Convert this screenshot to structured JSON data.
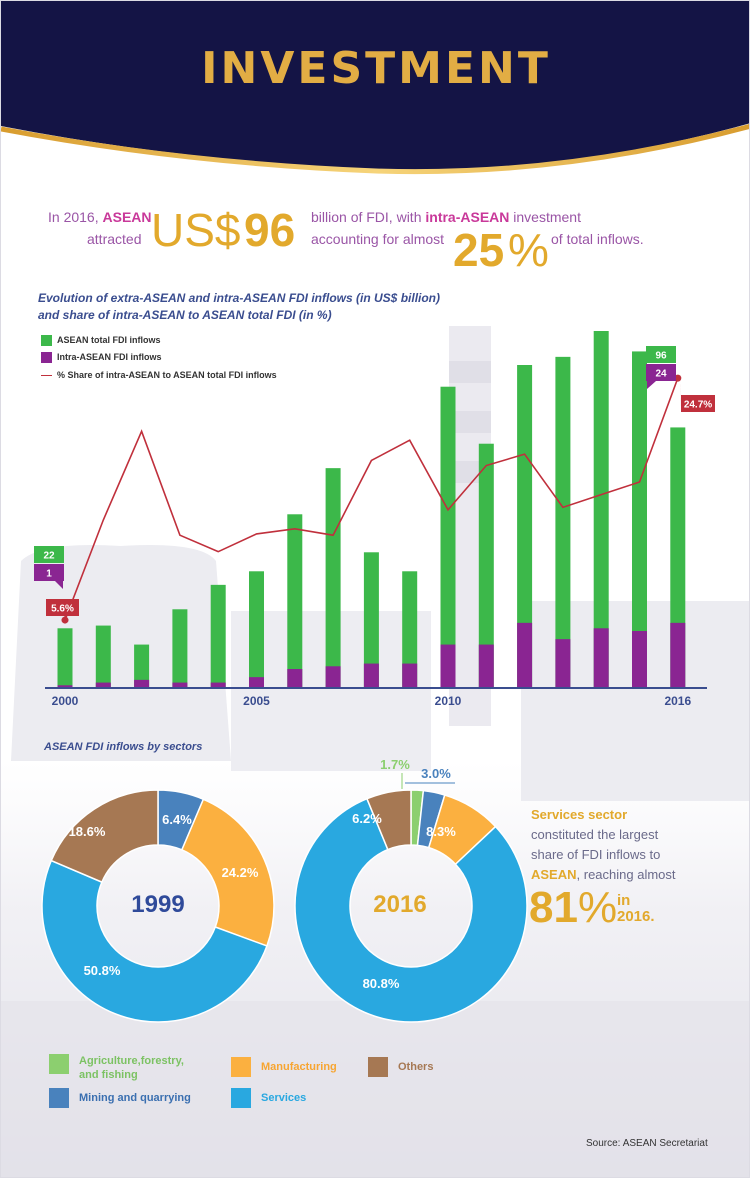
{
  "header": {
    "title": "INVESTMENT"
  },
  "intro": {
    "part1": "In 2016,",
    "asean": "ASEAN",
    "attracted": "attracted",
    "usd": "US$",
    "amount": "96",
    "part2": "billion of FDI, with",
    "intra": "intra-ASEAN",
    "part3": "investment",
    "part4": "accounting for almost",
    "pct_num": "25",
    "pct_sym": "%",
    "part5": "of total inflows."
  },
  "colors": {
    "navy": "#141445",
    "gold": "#e2ad44",
    "green": "#3cb84a",
    "purple": "#8a2592",
    "line_red": "#c0303c",
    "axis_blue": "#3a4d8f",
    "agri": "#8ccf6f",
    "mining": "#4982bd",
    "manufacturing": "#fbb040",
    "others": "#a67853",
    "services": "#29a8e0"
  },
  "chart_data": [
    {
      "type": "bar",
      "title": "Evolution of extra-ASEAN and intra-ASEAN FDI inflows (in US$ billion)",
      "title_line2": "and share of intra-ASEAN to ASEAN total FDI (in %)",
      "x": [
        2000,
        2001,
        2002,
        2003,
        2004,
        2005,
        2006,
        2007,
        2008,
        2009,
        2010,
        2011,
        2012,
        2013,
        2014,
        2015,
        2016
      ],
      "x_tick_labels": [
        "2000",
        "2005",
        "2010",
        "2016"
      ],
      "x_tick_values": [
        2000,
        2005,
        2010,
        2016
      ],
      "series": [
        {
          "name": "ASEAN total FDI inflows",
          "color": "#3cb84a",
          "values": [
            22,
            23,
            16,
            29,
            38,
            43,
            64,
            81,
            50,
            43,
            111,
            90,
            119,
            122,
            134,
            124,
            96
          ]
        },
        {
          "name": "Intra-ASEAN FDI inflows",
          "color": "#8a2592",
          "values": [
            1,
            2,
            3,
            2,
            2,
            4,
            7,
            8,
            9,
            9,
            16,
            16,
            24,
            18,
            22,
            21,
            24
          ]
        },
        {
          "name": "% Share of intra-ASEAN to ASEAN total FDI inflows",
          "color": "#c0303c",
          "kind": "line",
          "values": [
            5.6,
            13.5,
            20.5,
            12.3,
            11.0,
            12.4,
            12.8,
            12.3,
            18.2,
            19.8,
            14.3,
            17.8,
            18.7,
            14.5,
            15.5,
            16.5,
            24.7
          ]
        }
      ],
      "y_bar_range": [
        0,
        140
      ],
      "y_line_range": [
        0,
        30
      ],
      "callouts": {
        "start_total": "22",
        "start_intra": "1",
        "start_pct": "5.6%",
        "end_total": "96",
        "end_intra": "24",
        "end_pct": "24.7%"
      },
      "legend_position": "top-left",
      "grid": false
    },
    {
      "type": "pie",
      "title": "ASEAN FDI inflows by sectors",
      "center_label": "1999",
      "slices": [
        {
          "name": "Mining and quarrying",
          "value": 6.4,
          "label": "6.4%",
          "color": "#4982bd"
        },
        {
          "name": "Manufacturing",
          "value": 24.2,
          "label": "24.2%",
          "color": "#fbb040"
        },
        {
          "name": "Services",
          "value": 50.8,
          "label": "50.8%",
          "color": "#29a8e0"
        },
        {
          "name": "Others",
          "value": 18.6,
          "label": "18.6%",
          "color": "#a67853"
        }
      ]
    },
    {
      "type": "pie",
      "center_label": "2016",
      "slices": [
        {
          "name": "Agriculture,forestry, and fishing",
          "value": 1.7,
          "label": "1.7%",
          "color": "#8ccf6f"
        },
        {
          "name": "Mining and quarrying",
          "value": 3.0,
          "label": "3.0%",
          "color": "#4982bd"
        },
        {
          "name": "Manufacturing",
          "value": 8.3,
          "label": "8.3%",
          "color": "#fbb040"
        },
        {
          "name": "Services",
          "value": 80.8,
          "label": "80.8%",
          "color": "#29a8e0"
        },
        {
          "name": "Others",
          "value": 6.2,
          "label": "6.2%",
          "color": "#a67853"
        }
      ]
    }
  ],
  "side_note": {
    "line1": "Services sector",
    "line2": "constituted the largest",
    "line3": "share of FDI inflows to",
    "asean": "ASEAN",
    "line4": ", reaching almost",
    "big": "81",
    "pct": "%",
    "in": "in",
    "year": "2016."
  },
  "sector_legend": [
    {
      "label": "Agriculture,forestry,",
      "label2": "and fishing",
      "color": "#8ccf6f",
      "text_color": "#7cc263"
    },
    {
      "label": "Manufacturing",
      "color": "#fbb040",
      "text_color": "#f7a531"
    },
    {
      "label": "Others",
      "color": "#a67853",
      "text_color": "#a67853"
    },
    {
      "label": "Mining and quarrying",
      "color": "#4982bd",
      "text_color": "#3a6fb0"
    },
    {
      "label": "Services",
      "color": "#29a8e0",
      "text_color": "#29a8e0"
    }
  ],
  "source": "Source: ASEAN Secretariat"
}
